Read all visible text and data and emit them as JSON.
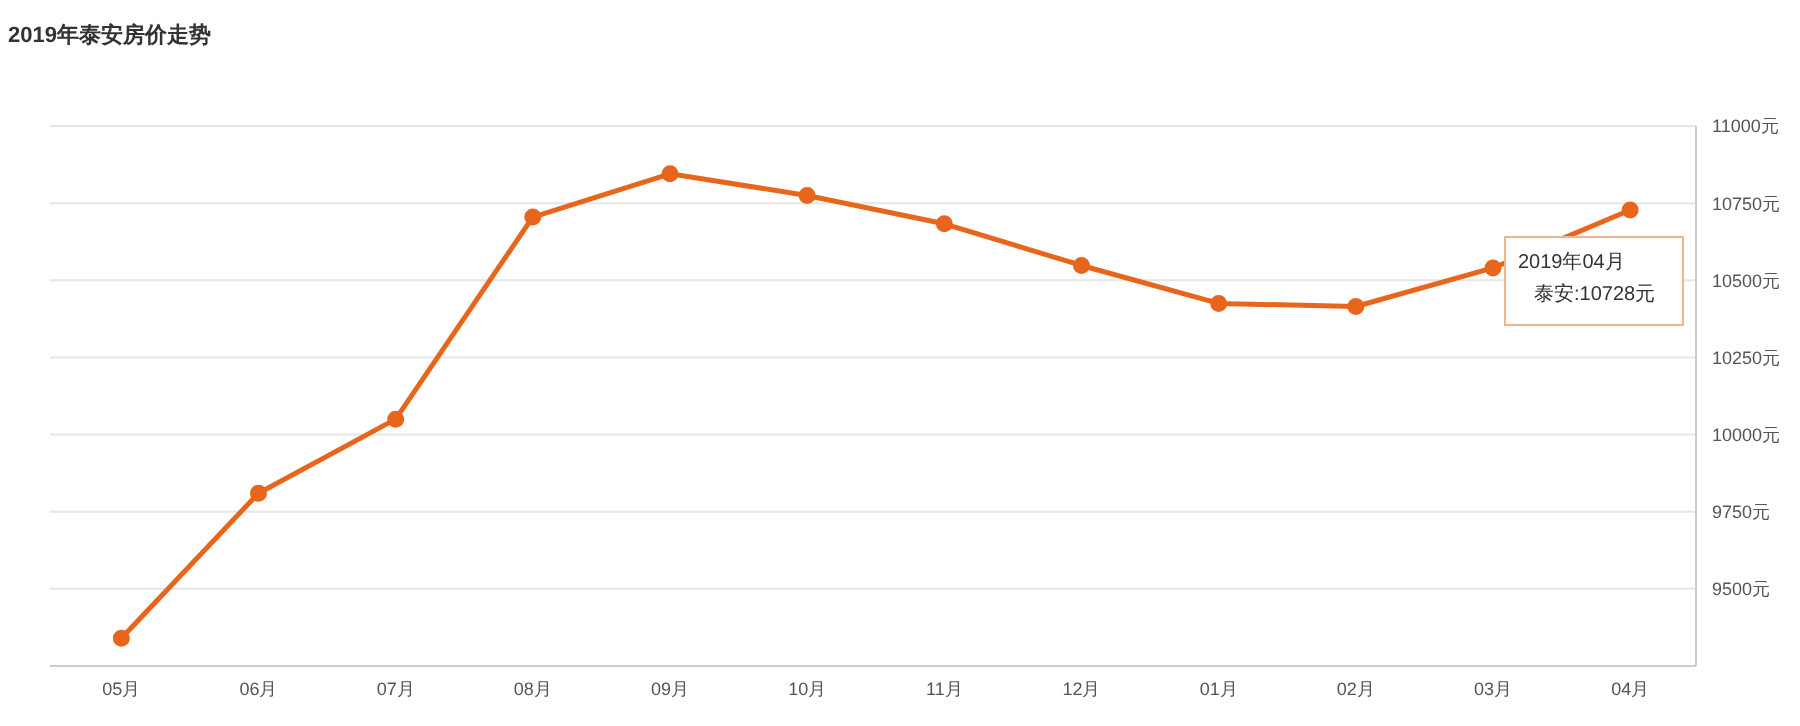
{
  "chart_data": {
    "type": "line",
    "title": "2019年泰安房价走势",
    "categories": [
      "05月",
      "06月",
      "07月",
      "08月",
      "09月",
      "10月",
      "11月",
      "12月",
      "01月",
      "02月",
      "03月",
      "04月"
    ],
    "series": [
      {
        "color": "#e8661c",
        "values": [
          9340,
          9810,
          10050,
          10705,
          10845,
          10775,
          10683,
          10548,
          10425,
          10415,
          10540,
          10728
        ]
      }
    ],
    "ylim": [
      9250,
      11000
    ],
    "yticks": [
      {
        "value": 9250,
        "label": null
      },
      {
        "value": 9500,
        "label": "9500元"
      },
      {
        "value": 9750,
        "label": "9750元"
      },
      {
        "value": 10000,
        "label": "10000元"
      },
      {
        "value": 10250,
        "label": "10250元"
      },
      {
        "value": 10500,
        "label": "10500元"
      },
      {
        "value": 10750,
        "label": "10750元"
      },
      {
        "value": 11000,
        "label": "11000元"
      }
    ],
    "grid": "y",
    "marker": "circle",
    "line_style": "solid",
    "annotations": [
      "2019年04月",
      "泰安:10728元"
    ]
  }
}
